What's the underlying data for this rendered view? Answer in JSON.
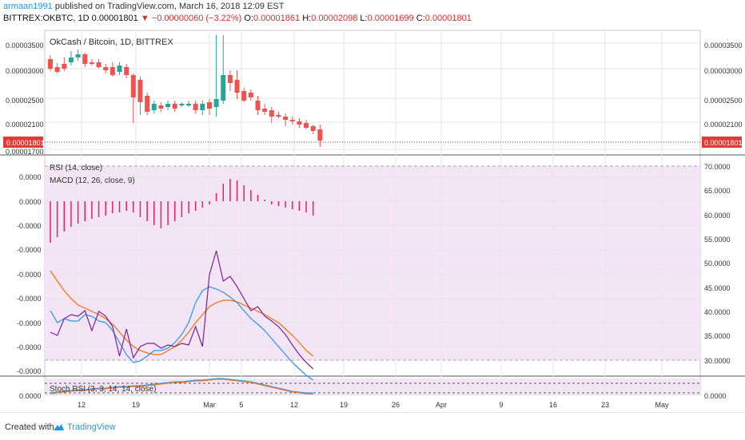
{
  "header": {
    "user": "armaan1991",
    "published": "published on TradingView.com, March 16, 2018 12:09 EST",
    "symbol": "BITTREX:OKBTC, 1D",
    "price": "0.00001801",
    "change": "−0.00000060 (−3.22%)",
    "ohlc": {
      "o_label": "O:",
      "o": "0.00001861",
      "h_label": "H:",
      "h": "0.00002098",
      "l_label": "L:",
      "l": "0.00001699",
      "c_label": "C:",
      "c": "0.00001801"
    }
  },
  "chart": {
    "title": "OkCash / Bitcoin, 1D, BITTREX",
    "price_ticks": [
      "0.00003500",
      "0.00003000",
      "0.00002500",
      "0.00002100",
      "0.00001700"
    ],
    "last_price": "0.00001801",
    "rsi_label": "RSI (14, close)",
    "macd_label": "MACD (12, 26, close, 9)",
    "rsi_ticks": [
      "70.0000",
      "65.0000",
      "60.0000",
      "55.0000",
      "50.0000",
      "45.0000",
      "40.0000",
      "35.0000",
      "30.0000"
    ],
    "macd_ticks": [
      "0.0000",
      "0.0000",
      "-0.0000",
      "-0.0000",
      "-0.0000",
      "-0.0000",
      "-0.0000",
      "-0.0000",
      "-0.0000"
    ],
    "stoch_label": "Stoch RSI (3, 3, 14, 14, close)",
    "stoch_left_tick": "0.0000",
    "stoch_right_tick": "0.0000",
    "x_ticks": [
      "12",
      "19",
      "Mar",
      "5",
      "12",
      "19",
      "26",
      "Apr",
      "9",
      "16",
      "23",
      "May"
    ],
    "colors": {
      "up": "#26a69a",
      "down": "#ef5350",
      "rsi": "#7b1fa2",
      "macd": "#2196f3",
      "signal": "#ff6d00",
      "hist": "#e91e63",
      "pane_bg": "#f3e5f5"
    }
  },
  "footer": {
    "created": "Created with",
    "brand": "TradingView"
  }
}
